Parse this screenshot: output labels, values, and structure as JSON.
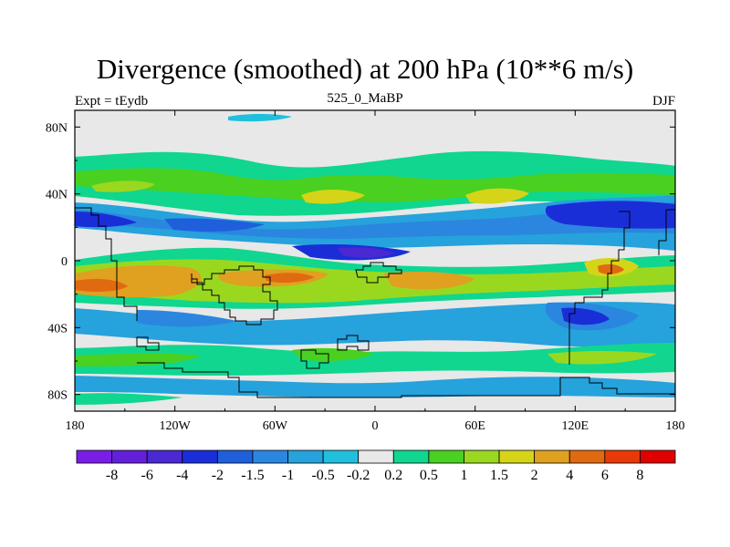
{
  "header": {
    "title": "Divergence (smoothed) at 200 hPa (10**6 m/s)",
    "left_label": "Expt = tEydb",
    "center_label": "525_0_MaBP",
    "right_label": "DJF"
  },
  "chart_data": {
    "type": "heatmap",
    "title": "Divergence (smoothed) at 200 hPa (10**6 m/s)",
    "projection": "cylindrical equidistant",
    "xlim": [
      -180,
      180
    ],
    "ylim": [
      -90,
      90
    ],
    "x_ticks": [
      {
        "value": -180,
        "label": "180"
      },
      {
        "value": -120,
        "label": "120W"
      },
      {
        "value": -60,
        "label": "60W"
      },
      {
        "value": 0,
        "label": "0"
      },
      {
        "value": 60,
        "label": "60E"
      },
      {
        "value": 120,
        "label": "120E"
      },
      {
        "value": 180,
        "label": "180"
      }
    ],
    "y_ticks": [
      {
        "value": 80,
        "label": "80N"
      },
      {
        "value": 40,
        "label": "40N"
      },
      {
        "value": 0,
        "label": "0"
      },
      {
        "value": -40,
        "label": "40S"
      },
      {
        "value": -80,
        "label": "80S"
      }
    ],
    "colorbar": {
      "labels": [
        "-8",
        "-6",
        "-4",
        "-2",
        "-1.5",
        "-1",
        "-0.5",
        "-0.2",
        "0.2",
        "0.5",
        "1",
        "1.5",
        "2",
        "4",
        "6",
        "8"
      ],
      "colors": [
        "#7a1ee6",
        "#6320d8",
        "#4a28d2",
        "#1a2ed8",
        "#1f5fdc",
        "#2b86e0",
        "#26a2dc",
        "#20c0dc",
        "#e8e8e8",
        "#10d690",
        "#4ad020",
        "#9ad820",
        "#d6d418",
        "#e0a020",
        "#e06a10",
        "#e83a08",
        "#e00000"
      ]
    },
    "regions": [
      {
        "value": -3,
        "lon": [
          -175,
          -140
        ],
        "lat": [
          20,
          35
        ]
      },
      {
        "value": -3,
        "lon": [
          -40,
          20
        ],
        "lat": [
          0,
          10
        ]
      },
      {
        "value": -4,
        "lon": [
          110,
          175
        ],
        "lat": [
          22,
          38
        ]
      },
      {
        "value": 3,
        "lon": [
          -180,
          -120
        ],
        "lat": [
          -20,
          -5
        ]
      },
      {
        "value": 3,
        "lon": [
          -100,
          -30
        ],
        "lat": [
          -15,
          -5
        ]
      },
      {
        "value": 2,
        "lon": [
          0,
          60
        ],
        "lat": [
          -22,
          -10
        ]
      },
      {
        "value": 2,
        "lon": [
          130,
          170
        ],
        "lat": [
          -15,
          -5
        ]
      },
      {
        "value": -2,
        "lon": [
          100,
          140
        ],
        "lat": [
          -40,
          -25
        ]
      },
      {
        "value": 1.5,
        "lon": [
          40,
          90
        ],
        "lat": [
          40,
          50
        ]
      },
      {
        "value": 1,
        "lon": [
          -20,
          20
        ],
        "lat": [
          30,
          40
        ]
      }
    ]
  }
}
